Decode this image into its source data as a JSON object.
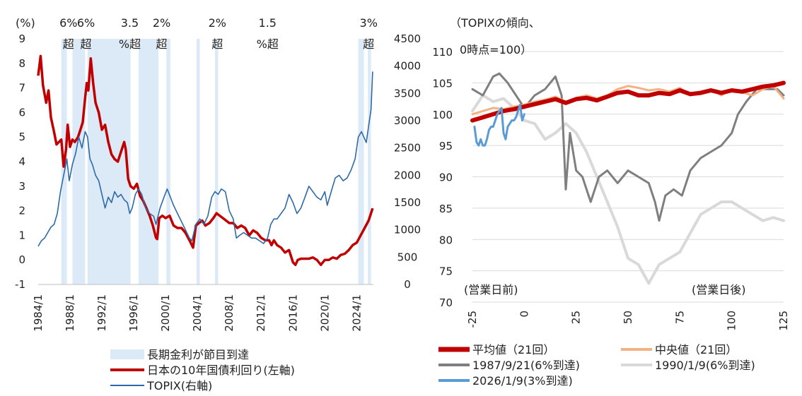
{
  "chart_data": [
    {
      "type": "line",
      "left_axis_label": "(%)",
      "left_ylim": [
        -1,
        9
      ],
      "left_ticks": [
        "-1",
        "0",
        "1",
        "2",
        "3",
        "4",
        "5",
        "6",
        "7",
        "8",
        "9"
      ],
      "right_ylim": [
        0,
        4500
      ],
      "right_ticks": [
        "0",
        "500",
        "1000",
        "1500",
        "2000",
        "2500",
        "3000",
        "3500",
        "4000",
        "4500"
      ],
      "xlim": [
        1984.0,
        2026.1
      ],
      "x_ticks": [
        "1984/1",
        "1988/1",
        "1992/1",
        "1996/1",
        "2000/1",
        "2004/1",
        "2008/1",
        "2012/1",
        "2016/1",
        "2020/1",
        "2024/1"
      ],
      "threshold_annotations": [
        {
          "line1": "6%",
          "line2": "超",
          "x": 1987.8
        },
        {
          "line1": "6%",
          "line2": "超",
          "x": 1990.0
        },
        {
          "line1": "3.5",
          "line2": "%超",
          "x": 1995.5
        },
        {
          "line1": "2%",
          "line2": "超",
          "x": 1999.5
        },
        {
          "line1": "2%",
          "line2": "超",
          "x": 2006.5
        },
        {
          "line1": "1.5",
          "line2": "%超",
          "x": 2012.8
        },
        {
          "line1": "3%",
          "line2": "超",
          "x": 2025.5
        }
      ],
      "bands": [
        1986.9,
        1987.6,
        1988.3,
        1989.9,
        1990.2,
        1995.6,
        1996.6,
        1999.1,
        2000.1,
        2000.6,
        2003.9,
        2004.3,
        2006.2,
        2006.6,
        2024.2,
        2024.9,
        2025.4,
        2025.8
      ],
      "legend": [
        {
          "label": "長期金利が節目到達",
          "color": "#dce9f7",
          "kind": "band"
        },
        {
          "label": "日本の10年国債利回り(左軸)",
          "color": "#c00000",
          "kind": "line"
        },
        {
          "label": "TOPIX(右軸)",
          "color": "#2e6aa7",
          "kind": "line"
        }
      ],
      "series": [
        {
          "axis": "left",
          "color": "#c00000",
          "x": [
            1984.0,
            1984.3,
            1984.6,
            1985.0,
            1985.3,
            1985.6,
            1986.0,
            1986.3,
            1986.6,
            1986.9,
            1987.2,
            1987.5,
            1987.7,
            1988.0,
            1988.3,
            1988.6,
            1989.0,
            1989.3,
            1989.6,
            1989.9,
            1990.1,
            1990.3,
            1990.6,
            1990.9,
            1991.2,
            1991.6,
            1992.0,
            1992.4,
            1992.8,
            1993.2,
            1993.6,
            1994.0,
            1994.4,
            1994.8,
            1995.0,
            1995.3,
            1995.6,
            1996.0,
            1996.4,
            1996.8,
            1997.2,
            1997.6,
            1998.0,
            1998.4,
            1998.8,
            1998.95,
            1999.2,
            1999.6,
            2000.0,
            2000.5,
            2001.0,
            2001.5,
            2002.0,
            2002.5,
            2003.0,
            2003.45,
            2003.8,
            2004.2,
            2004.6,
            2005.0,
            2005.5,
            2006.0,
            2006.4,
            2006.8,
            2007.2,
            2007.6,
            2008.0,
            2008.5,
            2009.0,
            2009.5,
            2010.0,
            2010.5,
            2011.0,
            2011.5,
            2012.0,
            2012.5,
            2013.0,
            2013.3,
            2013.6,
            2014.0,
            2014.5,
            2015.0,
            2015.5,
            2016.0,
            2016.3,
            2016.6,
            2017.0,
            2017.5,
            2018.0,
            2018.5,
            2019.0,
            2019.5,
            2020.0,
            2020.5,
            2021.0,
            2021.5,
            2022.0,
            2022.5,
            2023.0,
            2023.5,
            2024.0,
            2024.5,
            2025.0,
            2025.5,
            2026.0
          ],
          "y": [
            7.5,
            8.3,
            7.1,
            6.4,
            6.9,
            5.8,
            5.2,
            4.7,
            4.8,
            4.9,
            3.8,
            4.5,
            5.5,
            4.6,
            4.9,
            4.8,
            5.0,
            5.3,
            5.6,
            6.6,
            7.2,
            6.9,
            8.2,
            7.2,
            6.4,
            6.0,
            5.3,
            5.5,
            4.8,
            4.3,
            4.1,
            4.0,
            4.4,
            4.8,
            4.5,
            3.3,
            3.0,
            2.9,
            3.1,
            2.6,
            2.4,
            2.1,
            1.8,
            1.4,
            0.9,
            0.85,
            1.7,
            1.8,
            1.7,
            1.8,
            1.4,
            1.3,
            1.3,
            1.1,
            0.8,
            0.5,
            1.4,
            1.5,
            1.6,
            1.4,
            1.5,
            1.7,
            1.9,
            1.8,
            1.7,
            1.6,
            1.5,
            1.5,
            1.3,
            1.4,
            1.3,
            1.0,
            1.2,
            1.1,
            0.9,
            0.8,
            0.8,
            0.6,
            0.8,
            0.6,
            0.5,
            0.3,
            0.4,
            -0.1,
            -0.2,
            0.0,
            0.05,
            0.05,
            0.05,
            0.1,
            0.0,
            -0.2,
            0.0,
            0.0,
            0.1,
            0.05,
            0.2,
            0.25,
            0.4,
            0.6,
            0.7,
            1.0,
            1.3,
            1.6,
            2.1
          ]
        },
        {
          "axis": "right",
          "color": "#2e6aa7",
          "x": [
            1984.0,
            1984.4,
            1984.8,
            1985.2,
            1985.6,
            1986.0,
            1986.4,
            1986.8,
            1987.2,
            1987.6,
            1987.9,
            1988.3,
            1988.7,
            1989.1,
            1989.5,
            1989.9,
            1990.2,
            1990.5,
            1990.8,
            1991.2,
            1991.6,
            1992.0,
            1992.4,
            1992.8,
            1993.2,
            1993.6,
            1994.0,
            1994.4,
            1994.8,
            1995.2,
            1995.5,
            1995.8,
            1996.2,
            1996.6,
            1997.0,
            1997.5,
            1998.0,
            1998.5,
            1998.8,
            1999.3,
            1999.8,
            2000.2,
            2000.6,
            2001.0,
            2001.5,
            2002.0,
            2002.5,
            2003.0,
            2003.3,
            2003.8,
            2004.3,
            2004.8,
            2005.3,
            2005.8,
            2006.2,
            2006.6,
            2007.0,
            2007.5,
            2008.0,
            2008.5,
            2008.9,
            2009.3,
            2009.8,
            2010.3,
            2010.8,
            2011.3,
            2011.8,
            2012.3,
            2012.8,
            2013.2,
            2013.6,
            2014.0,
            2014.5,
            2015.0,
            2015.5,
            2016.0,
            2016.5,
            2017.0,
            2017.5,
            2018.0,
            2018.5,
            2019.0,
            2019.5,
            2020.0,
            2020.3,
            2020.8,
            2021.3,
            2021.8,
            2022.3,
            2022.8,
            2023.3,
            2023.8,
            2024.2,
            2024.6,
            2024.9,
            2025.2,
            2025.5,
            2025.8,
            2026.0
          ],
          "y": [
            700,
            800,
            850,
            950,
            1050,
            1100,
            1300,
            1700,
            2000,
            2300,
            1900,
            2200,
            2400,
            2700,
            2500,
            2800,
            2700,
            2300,
            2200,
            2000,
            1900,
            1650,
            1400,
            1600,
            1500,
            1700,
            1600,
            1650,
            1550,
            1500,
            1300,
            1400,
            1650,
            1750,
            1650,
            1400,
            1300,
            1250,
            1100,
            1400,
            1600,
            1750,
            1600,
            1450,
            1300,
            1150,
            1000,
            850,
            800,
            1100,
            1200,
            1100,
            1250,
            1600,
            1700,
            1650,
            1750,
            1700,
            1350,
            1200,
            850,
            900,
            950,
            900,
            850,
            850,
            800,
            750,
            850,
            1100,
            1200,
            1200,
            1300,
            1400,
            1650,
            1500,
            1300,
            1400,
            1600,
            1800,
            1700,
            1600,
            1550,
            1700,
            1450,
            1700,
            1950,
            2000,
            1900,
            1950,
            2100,
            2300,
            2700,
            2800,
            2700,
            2600,
            2900,
            3200,
            3900
          ]
        }
      ]
    },
    {
      "type": "line",
      "left_axis_label_line1": "（TOPIXの傾向、",
      "left_axis_label_line2": "0時点=100）",
      "ylim": [
        70,
        110
      ],
      "y_ticks": [
        "70",
        "75",
        "80",
        "85",
        "90",
        "95",
        "100",
        "105",
        "110"
      ],
      "xlim": [
        -25,
        125
      ],
      "x_ticks": [
        "-25",
        "0",
        "25",
        "50",
        "75",
        "100",
        "125"
      ],
      "x_tick_values": [
        -25,
        0,
        25,
        50,
        75,
        100,
        125
      ],
      "label_before": "(営業日前)",
      "label_after": "(営業日後)",
      "legend": [
        {
          "label": "平均値（21回）",
          "color": "#c00000"
        },
        {
          "label": "中央値（21回）",
          "color": "#f4b183"
        },
        {
          "label": "1987/9/21(6%到達)",
          "color": "#7f7f7f"
        },
        {
          "label": "1990/1/9(6%到達)",
          "color": "#d9d9d9"
        },
        {
          "label": "2026/1/9(3%到達)",
          "color": "#5b9bd5"
        }
      ],
      "series": [
        {
          "name": "1990/1/9(6%到達)",
          "color": "#d9d9d9",
          "width": 4,
          "x": [
            -25,
            -20,
            -15,
            -10,
            -5,
            0,
            5,
            10,
            15,
            20,
            25,
            30,
            35,
            40,
            45,
            50,
            55,
            60,
            65,
            70,
            75,
            80,
            85,
            90,
            95,
            100,
            105,
            110,
            115,
            120,
            125
          ],
          "y": [
            100.5,
            103,
            102,
            102.5,
            101,
            99,
            98.5,
            96,
            97,
            98.5,
            97,
            94,
            90,
            86,
            82,
            77,
            76,
            73,
            76,
            77,
            78,
            81,
            84,
            85,
            86,
            86,
            85,
            84,
            83,
            83.5,
            83
          ]
        },
        {
          "name": "1987/9/21(6%到達)",
          "color": "#7f7f7f",
          "width": 3,
          "x": [
            -25,
            -20,
            -15,
            -12,
            -8,
            -4,
            0,
            5,
            10,
            15,
            18,
            20,
            22,
            25,
            28,
            32,
            36,
            40,
            45,
            50,
            55,
            60,
            63,
            65,
            68,
            72,
            76,
            80,
            85,
            90,
            95,
            100,
            103,
            107,
            112,
            117,
            122,
            125
          ],
          "y": [
            104,
            103,
            106,
            106.5,
            105,
            103,
            101,
            103,
            104,
            106,
            103,
            88,
            97,
            91,
            90,
            86,
            90,
            91,
            89,
            91,
            90,
            89,
            86,
            83,
            87,
            88,
            87,
            91,
            93,
            94,
            95,
            97,
            100,
            102,
            104,
            104,
            104,
            103
          ]
        },
        {
          "name": "中央値（21回）",
          "color": "#f4b183",
          "width": 3,
          "x": [
            -25,
            -20,
            -15,
            -10,
            -5,
            0,
            5,
            10,
            15,
            20,
            25,
            30,
            35,
            40,
            45,
            50,
            55,
            60,
            65,
            70,
            75,
            80,
            85,
            90,
            95,
            100,
            105,
            110,
            115,
            120,
            125
          ],
          "y": [
            100,
            100.5,
            101,
            100.8,
            101.2,
            101.5,
            102,
            102.3,
            102.8,
            102,
            102.6,
            103,
            102.5,
            103,
            104,
            104.5,
            104.2,
            103.8,
            104,
            103.6,
            104.2,
            103,
            103.6,
            104,
            103,
            104,
            103.5,
            103,
            104,
            104.5,
            102.5
          ]
        },
        {
          "name": "平均値（21回）",
          "color": "#c00000",
          "width": 6,
          "x": [
            -25,
            -20,
            -15,
            -10,
            -5,
            0,
            5,
            10,
            15,
            20,
            25,
            30,
            35,
            40,
            45,
            50,
            55,
            60,
            65,
            70,
            75,
            80,
            85,
            90,
            95,
            100,
            105,
            110,
            115,
            120,
            125
          ],
          "y": [
            99,
            99.5,
            100,
            100.5,
            100.8,
            101.2,
            101.6,
            102,
            102.4,
            101.8,
            102.4,
            102.6,
            102.2,
            102.8,
            103.4,
            103.6,
            103,
            103,
            103.4,
            103.2,
            103.8,
            103.2,
            103.4,
            103.8,
            103.4,
            103.8,
            103.6,
            104,
            104.4,
            104.6,
            105
          ]
        },
        {
          "name": "2026/1/9(3%到達)",
          "color": "#5b9bd5",
          "width": 3,
          "x": [
            -24,
            -23,
            -22,
            -21,
            -20,
            -19,
            -18,
            -17,
            -16,
            -15,
            -14,
            -13,
            -12,
            -11,
            -10,
            -9,
            -8,
            -7,
            -6,
            -5,
            -4,
            -3,
            -2,
            -1,
            0
          ],
          "y": [
            98,
            95.5,
            95,
            96,
            95,
            95,
            96,
            97.5,
            98,
            98,
            99,
            100,
            100.5,
            101,
            97,
            96,
            98,
            98.5,
            99,
            99,
            99.5,
            100.5,
            101.5,
            99,
            100
          ]
        }
      ]
    }
  ]
}
